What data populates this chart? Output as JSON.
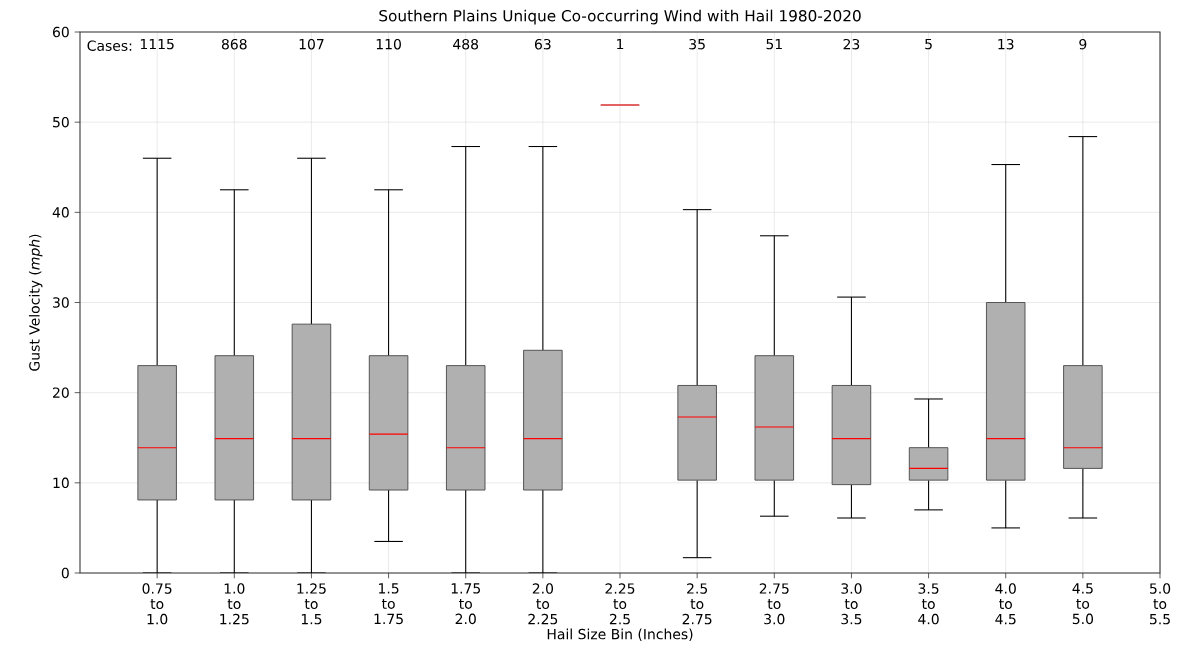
{
  "chart_data": {
    "type": "box",
    "title": "Southern Plains Unique Co-occurring Wind with Hail 1980-2020",
    "xlabel": "Hail Size Bin (Inches)",
    "ylabel": "Gust Velocity (*mph*)",
    "categories": [
      "0.75 to 1.0",
      "1.0 to 1.25",
      "1.25 to 1.5",
      "1.5 to 1.75",
      "1.75 to 2.0",
      "2.0 to 2.25",
      "2.25 to 2.5",
      "2.5 to 2.75",
      "2.75 to 3.0",
      "3.0 to 3.5",
      "3.5 to 4.0",
      "4.0 to 4.5",
      "4.5 to 5.0",
      "5.0 to 5.5"
    ],
    "ylim": [
      0,
      60
    ],
    "yticks": [
      0,
      10,
      20,
      30,
      40,
      50,
      60
    ],
    "grid": true,
    "series": [
      {
        "color": "#b0b0b0",
        "boxes": [
          {
            "low": 0,
            "q1": 8.1,
            "median": 13.9,
            "q3": 23,
            "high": 46
          },
          {
            "low": 0,
            "q1": 8.1,
            "median": 14.9,
            "q3": 24.1,
            "high": 42.5
          },
          {
            "low": 0,
            "q1": 8.1,
            "median": 14.9,
            "q3": 27.6,
            "high": 46
          },
          {
            "low": 3.5,
            "q1": 9.2,
            "median": 15.4,
            "q3": 24.1,
            "high": 42.5
          },
          {
            "low": 0,
            "q1": 9.2,
            "median": 13.9,
            "q3": 23,
            "high": 47.3
          },
          {
            "low": 0,
            "q1": 9.2,
            "median": 14.9,
            "q3": 24.7,
            "high": 47.3
          },
          {
            "low": 51.9,
            "q1": 51.9,
            "median": 51.9,
            "q3": 51.9,
            "high": 51.9
          },
          {
            "low": 1.7,
            "q1": 10.3,
            "median": 17.3,
            "q3": 20.8,
            "high": 40.3
          },
          {
            "low": 6.3,
            "q1": 10.3,
            "median": 16.2,
            "q3": 24.1,
            "high": 37.4
          },
          {
            "low": 6.1,
            "q1": 9.8,
            "median": 14.9,
            "q3": 20.8,
            "high": 30.6
          },
          {
            "low": 7,
            "q1": 10.3,
            "median": 11.6,
            "q3": 13.9,
            "high": 19.3
          },
          {
            "low": 5,
            "q1": 10.3,
            "median": 14.9,
            "q3": 30,
            "high": 45.3
          },
          {
            "low": 6.1,
            "q1": 11.6,
            "median": 13.9,
            "q3": 23,
            "high": 48.4
          },
          null
        ]
      }
    ],
    "annotations": [
      "Cases:",
      "1115",
      "868",
      "107",
      "110",
      "488",
      "63",
      "1",
      "35",
      "51",
      "23",
      "5",
      "13",
      "9"
    ]
  }
}
